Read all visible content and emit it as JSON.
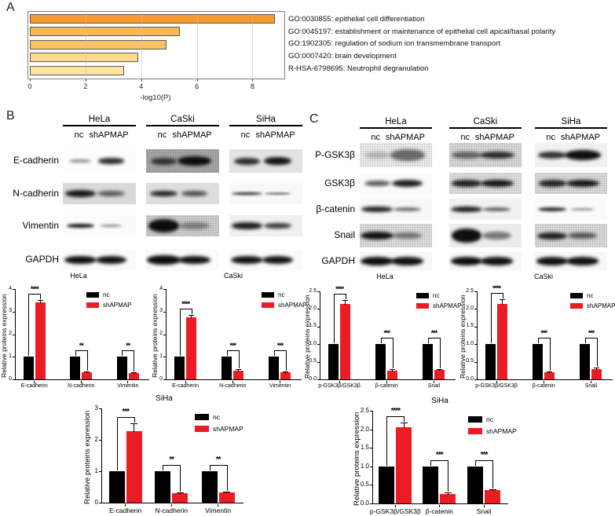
{
  "panels": {
    "a": {
      "letter": "A"
    },
    "b": {
      "letter": "B",
      "cell_lines": [
        "HeLa",
        "CaSki",
        "SiHa"
      ],
      "lane_labels": [
        "nc",
        "shAPMAP"
      ],
      "rows": [
        {
          "label": "E-cadherin",
          "strips": [
            {
              "bg": "#fcfcfc",
              "noise": false,
              "nc": [
                0.45,
                0.3,
                0.16
              ],
              "sh": [
                0.85,
                0.36,
                0.24
              ]
            },
            {
              "bg": "#a8a8a8",
              "noise": true,
              "nc": [
                0.72,
                0.36,
                0.3
              ],
              "sh": [
                0.95,
                0.46,
                0.42
              ]
            },
            {
              "bg": "#e3e3e3",
              "noise": false,
              "nc": [
                0.82,
                0.36,
                0.3
              ],
              "sh": [
                0.93,
                0.38,
                0.36
              ]
            }
          ]
        },
        {
          "label": "N-cadherin",
          "strips": [
            {
              "bg": "#d9d9d9",
              "noise": false,
              "nc": [
                0.93,
                0.42,
                0.34
              ],
              "sh": [
                0.6,
                0.38,
                0.26
              ]
            },
            {
              "bg": "#dedede",
              "noise": false,
              "nc": [
                0.88,
                0.38,
                0.26
              ],
              "sh": [
                0.66,
                0.36,
                0.24
              ]
            },
            {
              "bg": "#f8f8f8",
              "noise": false,
              "nc": [
                0.9,
                0.42,
                0.13
              ],
              "sh": [
                0.5,
                0.36,
                0.11
              ]
            }
          ]
        },
        {
          "label": "Vimentin",
          "strips": [
            {
              "bg": "#fbfbfb",
              "noise": false,
              "nc": [
                0.93,
                0.38,
                0.22
              ],
              "sh": [
                0.45,
                0.3,
                0.13
              ]
            },
            {
              "bg": "#cfcfcf",
              "noise": true,
              "nc": [
                0.96,
                0.42,
                0.6
              ],
              "sh": [
                0.4,
                0.42,
                0.34
              ]
            },
            {
              "bg": "#f0f0f0",
              "noise": false,
              "nc": [
                0.9,
                0.42,
                0.3
              ],
              "sh": [
                0.78,
                0.38,
                0.28
              ]
            }
          ]
        },
        {
          "label": "GAPDH",
          "strips": [
            {
              "bg": "#fafafa",
              "noise": false,
              "nc": [
                0.96,
                0.44,
                0.42
              ],
              "sh": [
                0.94,
                0.42,
                0.4
              ]
            },
            {
              "bg": "#fafafa",
              "noise": false,
              "nc": [
                0.97,
                0.46,
                0.44
              ],
              "sh": [
                0.95,
                0.44,
                0.42
              ]
            },
            {
              "bg": "#fafafa",
              "noise": false,
              "nc": [
                0.95,
                0.44,
                0.4
              ],
              "sh": [
                0.94,
                0.42,
                0.4
              ]
            }
          ]
        }
      ]
    },
    "c": {
      "letter": "C",
      "cell_lines": [
        "HeLa",
        "CaSki",
        "SiHa"
      ],
      "lane_labels": [
        "nc",
        "shAPMAP"
      ],
      "rows": [
        {
          "label": "P-GSK3β",
          "strips": [
            {
              "bg": "#ededed",
              "noise": true,
              "nc": [
                0.22,
                0.36,
                0.3
              ],
              "sh": [
                0.55,
                0.48,
                0.46
              ]
            },
            {
              "bg": "#d9d9d9",
              "noise": true,
              "nc": [
                0.55,
                0.42,
                0.26
              ],
              "sh": [
                0.82,
                0.48,
                0.3
              ]
            },
            {
              "bg": "#f1f1f1",
              "noise": false,
              "nc": [
                0.82,
                0.4,
                0.28
              ],
              "sh": [
                0.96,
                0.5,
                0.4
              ]
            }
          ]
        },
        {
          "label": "GSK3β",
          "strips": [
            {
              "bg": "#fafafa",
              "noise": false,
              "nc": [
                0.65,
                0.36,
                0.26
              ],
              "sh": [
                0.9,
                0.42,
                0.34
              ]
            },
            {
              "bg": "#e0e0e0",
              "noise": true,
              "nc": [
                0.88,
                0.42,
                0.3
              ],
              "sh": [
                0.92,
                0.46,
                0.36
              ]
            },
            {
              "bg": "#dcdcdc",
              "noise": true,
              "nc": [
                0.86,
                0.38,
                0.3
              ],
              "sh": [
                0.92,
                0.46,
                0.34
              ]
            }
          ]
        },
        {
          "label": "β-catenin",
          "strips": [
            {
              "bg": "#f7f7f7",
              "noise": false,
              "nc": [
                0.9,
                0.44,
                0.24
              ],
              "sh": [
                0.55,
                0.38,
                0.18
              ]
            },
            {
              "bg": "#f1f1f1",
              "noise": false,
              "nc": [
                0.92,
                0.44,
                0.26
              ],
              "sh": [
                0.6,
                0.38,
                0.2
              ]
            },
            {
              "bg": "#fafafa",
              "noise": false,
              "nc": [
                0.86,
                0.4,
                0.2
              ],
              "sh": [
                0.42,
                0.34,
                0.14
              ]
            }
          ]
        },
        {
          "label": "Snail",
          "strips": [
            {
              "bg": "#dedede",
              "noise": true,
              "nc": [
                0.95,
                0.46,
                0.36
              ],
              "sh": [
                0.48,
                0.4,
                0.26
              ]
            },
            {
              "bg": "#ececec",
              "noise": false,
              "nc": [
                0.96,
                0.42,
                0.58
              ],
              "sh": [
                0.5,
                0.4,
                0.36
              ]
            },
            {
              "bg": "#dbdbdb",
              "noise": true,
              "nc": [
                0.88,
                0.42,
                0.3
              ],
              "sh": [
                0.6,
                0.4,
                0.28
              ]
            }
          ]
        },
        {
          "label": "GAPDH",
          "strips": [
            {
              "bg": "#f7f7f7",
              "noise": false,
              "nc": [
                0.96,
                0.46,
                0.5
              ],
              "sh": [
                0.95,
                0.44,
                0.46
              ]
            },
            {
              "bg": "#f7f7f7",
              "noise": false,
              "nc": [
                0.96,
                0.44,
                0.46
              ],
              "sh": [
                0.95,
                0.44,
                0.44
              ]
            },
            {
              "bg": "#f7f7f7",
              "noise": false,
              "nc": [
                0.95,
                0.44,
                0.44
              ],
              "sh": [
                0.94,
                0.44,
                0.44
              ]
            }
          ]
        }
      ]
    }
  },
  "chart_data": [
    {
      "id": "go_enrichment",
      "type": "bar",
      "orientation": "horizontal",
      "xlabel": "-log10(P)",
      "xticks": [
        0,
        2,
        4,
        6,
        8
      ],
      "xlim": [
        0,
        9.2
      ],
      "grid": true,
      "categories": [
        "GO:0030855: epithelial cell differentiation",
        "GO:0045197: establishment or maintenance of epithelial cell apical/basal polarity",
        "GO:1902305: regulation of sodium ion transmembrane transport",
        "GO:0007420: brain development",
        "R-HSA-6798695: Neutrophil degranulation"
      ],
      "values": [
        8.8,
        5.4,
        4.9,
        3.9,
        3.4
      ],
      "bar_colors": [
        "#F8992F",
        "#FAB852",
        "#FBC167",
        "#FCD98C",
        "#FDE5A0"
      ],
      "legend_position": "right-text-list"
    },
    {
      "id": "b_hela",
      "type": "bar",
      "panel": "B",
      "title": "HeLa",
      "ylabel": "Relative proteins expression",
      "ylim": [
        0,
        4
      ],
      "yticks": [
        "0",
        "1",
        "2",
        "3",
        "4"
      ],
      "categories": [
        "E-cadherin",
        "N-cadherin",
        "Vimentin"
      ],
      "series": [
        {
          "name": "nc",
          "color": "#000000",
          "values": [
            1.0,
            1.0,
            1.0
          ],
          "errors": [
            0,
            0,
            0
          ]
        },
        {
          "name": "shAPMAP",
          "color": "#EC1C24",
          "values": [
            3.4,
            0.3,
            0.27
          ],
          "errors": [
            0.12,
            0.04,
            0.03
          ]
        }
      ],
      "significance": [
        "****",
        "**",
        "**"
      ],
      "legend": [
        "nc",
        "shAPMAP"
      ],
      "legend_position": "top-right"
    },
    {
      "id": "b_caski",
      "type": "bar",
      "panel": "B",
      "title": "CaSki",
      "ylabel": "Relative proteins expression",
      "ylim": [
        0,
        4
      ],
      "yticks": [
        "0",
        "1",
        "2",
        "3",
        "4"
      ],
      "categories": [
        "E-cadherin",
        "N-cadherin",
        "Vimentin"
      ],
      "series": [
        {
          "name": "nc",
          "color": "#000000",
          "values": [
            1.0,
            1.0,
            1.0
          ],
          "errors": [
            0,
            0,
            0
          ]
        },
        {
          "name": "shAPMAP",
          "color": "#EC1C24",
          "values": [
            2.75,
            0.4,
            0.3
          ],
          "errors": [
            0.1,
            0.05,
            0.04
          ]
        }
      ],
      "significance": [
        "****",
        "***",
        "***"
      ],
      "legend": [
        "nc",
        "shAPMAP"
      ],
      "legend_position": "top-right"
    },
    {
      "id": "c_hela",
      "type": "bar",
      "panel": "C",
      "title": "HeLa",
      "ylabel": "Relative proteins expression",
      "ylim": [
        0,
        2.5
      ],
      "yticks": [
        "0.0",
        "0.5",
        "1.0",
        "1.5",
        "2.0",
        "2.5"
      ],
      "categories": [
        "p-GSK3β/GSK3β",
        "β-catenin",
        "Snail"
      ],
      "series": [
        {
          "name": "nc",
          "color": "#000000",
          "values": [
            1.0,
            1.0,
            1.0
          ],
          "errors": [
            0,
            0,
            0
          ]
        },
        {
          "name": "shAPMAP",
          "color": "#EC1C24",
          "values": [
            2.15,
            0.25,
            0.27
          ],
          "errors": [
            0.1,
            0.03,
            0.03
          ]
        }
      ],
      "significance": [
        "****",
        "***",
        "***"
      ],
      "legend": [
        "nc",
        "shAPMAP"
      ],
      "legend_position": "top-right"
    },
    {
      "id": "c_caski",
      "type": "bar",
      "panel": "C",
      "title": "CaSki",
      "ylabel": "Relative proteins expression",
      "ylim": [
        0,
        2.5
      ],
      "yticks": [
        "0.0",
        "0.5",
        "1.0",
        "1.5",
        "2.0",
        "2.5"
      ],
      "categories": [
        "p-GSK3β/GSK3β",
        "β-catenin",
        "Snail"
      ],
      "series": [
        {
          "name": "nc",
          "color": "#000000",
          "values": [
            1.0,
            1.0,
            1.0
          ],
          "errors": [
            0,
            0,
            0
          ]
        },
        {
          "name": "shAPMAP",
          "color": "#EC1C24",
          "values": [
            2.15,
            0.2,
            0.3
          ],
          "errors": [
            0.12,
            0.03,
            0.04
          ]
        }
      ],
      "significance": [
        "****",
        "***",
        "***"
      ],
      "legend": [
        "nc",
        "shAPMAP"
      ],
      "legend_position": "top-right"
    },
    {
      "id": "b_siha",
      "type": "bar",
      "panel": "B",
      "title": "SiHa",
      "ylabel": "Relative proteins expression",
      "ylim": [
        0,
        3
      ],
      "yticks": [
        "0",
        "1",
        "2",
        "3"
      ],
      "categories": [
        "E-cadherin",
        "N-cadherin",
        "Vimentin"
      ],
      "series": [
        {
          "name": "nc",
          "color": "#000000",
          "values": [
            1.0,
            1.0,
            1.0
          ],
          "errors": [
            0,
            0,
            0
          ]
        },
        {
          "name": "shAPMAP",
          "color": "#EC1C24",
          "values": [
            2.27,
            0.3,
            0.32
          ],
          "errors": [
            0.25,
            0.03,
            0.03
          ]
        }
      ],
      "significance": [
        "***",
        "**",
        "**"
      ],
      "legend": [
        "nc",
        "shAPMAP"
      ],
      "legend_position": "top-right"
    },
    {
      "id": "c_siha",
      "type": "bar",
      "panel": "C",
      "title": "SiHa",
      "ylabel": "Relative proteins expression",
      "ylim": [
        0,
        2.5
      ],
      "yticks": [
        "0.0",
        "0.5",
        "1.0",
        "1.5",
        "2.0",
        "2.5"
      ],
      "categories": [
        "p-GSK3β/GSK3β",
        "β-catenin",
        "Snail"
      ],
      "series": [
        {
          "name": "nc",
          "color": "#000000",
          "values": [
            1.0,
            1.0,
            1.0
          ],
          "errors": [
            0,
            0,
            0
          ]
        },
        {
          "name": "shAPMAP",
          "color": "#EC1C24",
          "values": [
            2.05,
            0.26,
            0.35
          ],
          "errors": [
            0.13,
            0.04,
            0.04
          ]
        }
      ],
      "significance": [
        "****",
        "***",
        "***"
      ],
      "legend": [
        "nc",
        "shAPMAP"
      ],
      "legend_position": "top-right"
    }
  ]
}
